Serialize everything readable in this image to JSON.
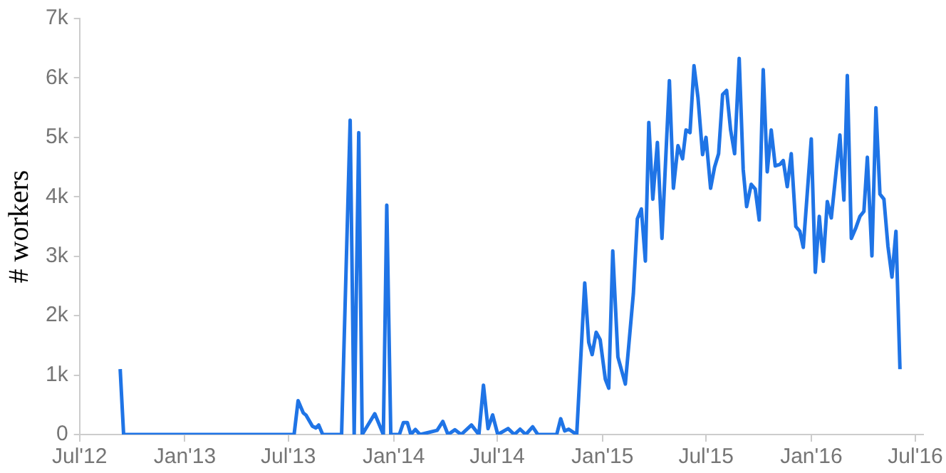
{
  "chart_data": {
    "type": "line",
    "ylabel": "# workers",
    "x": [
      "2012-09-10",
      "2012-09-16",
      "2013-07-11",
      "2013-07-18",
      "2013-07-27",
      "2013-08-01",
      "2013-08-12",
      "2013-08-18",
      "2013-08-23",
      "2013-08-30",
      "2013-10-02",
      "2013-10-17",
      "2013-10-24",
      "2013-11-01",
      "2013-11-07",
      "2013-11-29",
      "2013-12-14",
      "2013-12-20",
      "2013-12-27",
      "2014-01-11",
      "2014-01-18",
      "2014-01-25",
      "2014-01-31",
      "2014-02-08",
      "2014-02-16",
      "2014-03-18",
      "2014-03-28",
      "2014-04-06",
      "2014-04-18",
      "2014-04-29",
      "2014-05-17",
      "2014-05-30",
      "2014-06-07",
      "2014-06-15",
      "2014-06-23",
      "2014-07-02",
      "2014-07-20",
      "2014-07-31",
      "2014-08-10",
      "2014-08-20",
      "2014-09-01",
      "2014-09-10",
      "2014-10-13",
      "2014-10-20",
      "2014-10-27",
      "2014-11-03",
      "2014-11-17",
      "2014-12-01",
      "2014-12-08",
      "2014-12-14",
      "2014-12-21",
      "2014-12-28",
      "2015-01-06",
      "2015-01-12",
      "2015-01-19",
      "2015-01-28",
      "2015-02-10",
      "2015-02-24",
      "2015-03-03",
      "2015-03-10",
      "2015-03-17",
      "2015-03-23",
      "2015-03-30",
      "2015-04-07",
      "2015-04-15",
      "2015-04-28",
      "2015-05-05",
      "2015-05-13",
      "2015-05-21",
      "2015-05-27",
      "2015-06-03",
      "2015-06-10",
      "2015-06-17",
      "2015-06-25",
      "2015-07-01",
      "2015-07-09",
      "2015-07-16",
      "2015-07-23",
      "2015-07-30",
      "2015-08-06",
      "2015-08-13",
      "2015-08-20",
      "2015-08-28",
      "2015-09-04",
      "2015-09-10",
      "2015-09-18",
      "2015-09-25",
      "2015-10-02",
      "2015-10-09",
      "2015-10-16",
      "2015-10-23",
      "2015-10-30",
      "2015-11-07",
      "2015-11-13",
      "2015-11-20",
      "2015-11-27",
      "2015-12-05",
      "2015-12-12",
      "2015-12-18",
      "2016-01-01",
      "2016-01-08",
      "2016-01-15",
      "2016-01-22",
      "2016-01-29",
      "2016-02-05",
      "2016-02-20",
      "2016-02-27",
      "2016-03-04",
      "2016-03-11",
      "2016-03-19",
      "2016-03-26",
      "2016-04-02",
      "2016-04-08",
      "2016-04-16",
      "2016-04-23",
      "2016-04-30",
      "2016-05-07",
      "2016-05-14",
      "2016-05-21",
      "2016-05-28",
      "2016-06-04"
    ],
    "series": [
      {
        "color": "#1f74e6",
        "values": [
          1100,
          0,
          0,
          570,
          365,
          325,
          140,
          110,
          160,
          0,
          0,
          5290,
          0,
          5080,
          0,
          350,
          0,
          3860,
          0,
          0,
          200,
          200,
          0,
          85,
          0,
          70,
          220,
          0,
          80,
          0,
          160,
          0,
          830,
          100,
          330,
          0,
          100,
          0,
          90,
          0,
          130,
          0,
          0,
          265,
          60,
          90,
          0,
          2550,
          1550,
          1345,
          1720,
          1595,
          930,
          780,
          3090,
          1305,
          850,
          2370,
          3630,
          3795,
          2920,
          5250,
          3960,
          4915,
          3300,
          5955,
          4145,
          4860,
          4640,
          5125,
          5080,
          6205,
          5665,
          4710,
          5000,
          4145,
          4500,
          4725,
          5720,
          5790,
          5125,
          4725,
          6330,
          4460,
          3835,
          4210,
          4130,
          3610,
          6140,
          4420,
          5125,
          4520,
          4545,
          4610,
          4170,
          4725,
          3500,
          3420,
          3150,
          4975,
          2730,
          3670,
          2915,
          3920,
          3645,
          5040,
          3945,
          6040,
          3300,
          3480,
          3670,
          3755,
          4665,
          3005,
          5500,
          4045,
          3960,
          3170,
          2650,
          3420,
          1100
        ]
      }
    ],
    "xlim": [
      "2012-07-01",
      "2016-07-15"
    ],
    "xticks": [
      {
        "value": "2012-07-01",
        "label": "Jul'12"
      },
      {
        "value": "2013-01-01",
        "label": "Jan'13"
      },
      {
        "value": "2013-07-01",
        "label": "Jul'13"
      },
      {
        "value": "2014-01-01",
        "label": "Jan'14"
      },
      {
        "value": "2014-07-01",
        "label": "Jul'14"
      },
      {
        "value": "2015-01-01",
        "label": "Jan'15"
      },
      {
        "value": "2015-07-01",
        "label": "Jul'15"
      },
      {
        "value": "2016-01-01",
        "label": "Jan'16"
      },
      {
        "value": "2016-07-01",
        "label": "Jul'16"
      }
    ],
    "ylim": [
      0,
      7000
    ],
    "yticks": [
      0,
      {
        "value": 1000,
        "label": "1k"
      },
      {
        "value": 2000,
        "label": "2k"
      },
      {
        "value": 3000,
        "label": "3k"
      },
      {
        "value": 4000,
        "label": "4k"
      },
      {
        "value": 5000,
        "label": "5k"
      },
      {
        "value": 6000,
        "label": "6k"
      },
      {
        "value": 7000,
        "label": "7k"
      }
    ],
    "grid": false,
    "legend": false,
    "marker": "none",
    "line_style": "solid"
  }
}
